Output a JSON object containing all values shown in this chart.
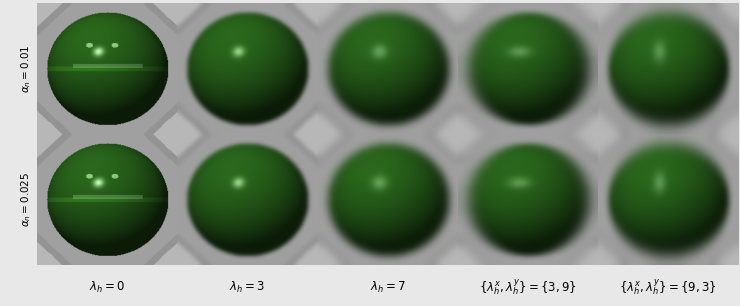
{
  "rows": 2,
  "cols": 5,
  "row_labels": [
    "$\\alpha_n = 0.01$",
    "$\\alpha_n = 0.025$"
  ],
  "col_labels": [
    "$\\lambda_h = 0$",
    "$\\lambda_h = 3$",
    "$\\lambda_h = 7$",
    "$\\{\\lambda_h^x, \\lambda_h^y\\} = \\{3, 9\\}$",
    "$\\{\\lambda_h^x, \\lambda_h^y\\} = \\{9, 3\\}$"
  ],
  "row_label_fontsize": 7.5,
  "col_label_fontsize": 8.5,
  "sphere_color": [
    45,
    110,
    30
  ],
  "bg_gray": 160,
  "fig_bg": "#e8e8e8",
  "cell_sep_color": "#ffffff",
  "N": 200
}
